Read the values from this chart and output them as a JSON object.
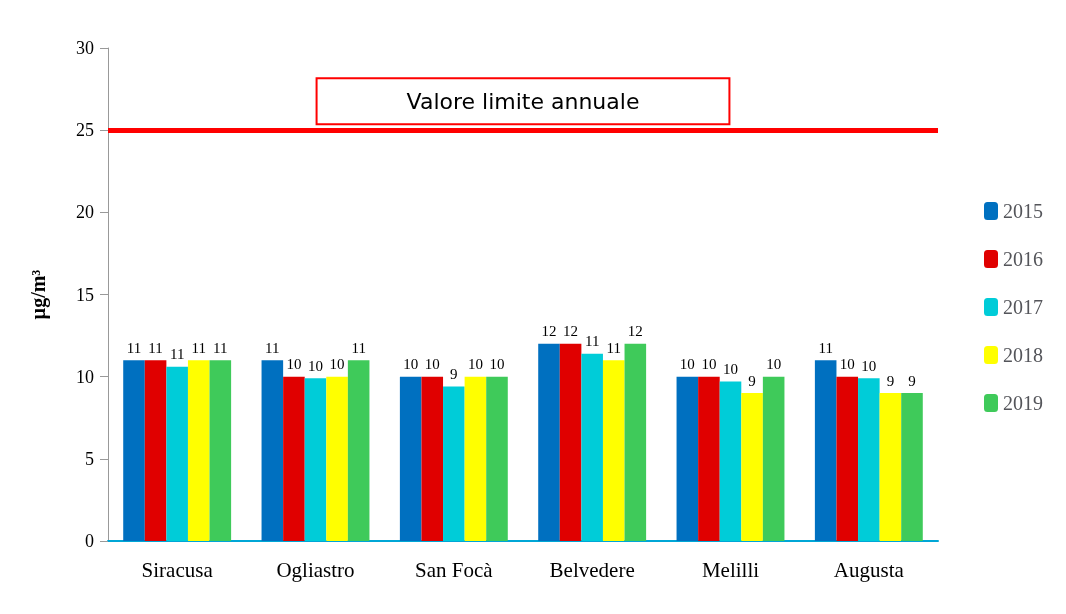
{
  "chart_data": {
    "type": "bar",
    "ylabel": "µg/m³",
    "categories": [
      "Siracusa",
      "Ogliastro",
      "San Focà",
      "Belvedere",
      "Melilli",
      "Augusta"
    ],
    "series": [
      {
        "name": "2015",
        "color": "#0070c0",
        "values": [
          11,
          11,
          10,
          12,
          10,
          11
        ],
        "value_labels": [
          "11",
          "11",
          "10",
          "12",
          "10",
          "11"
        ]
      },
      {
        "name": "2016",
        "color": "#e00000",
        "values": [
          11,
          10,
          10,
          12,
          10,
          10
        ],
        "value_labels": [
          "11",
          "10",
          "10",
          "12",
          "10",
          "10"
        ]
      },
      {
        "name": "2017",
        "color": "#00ccd8",
        "values": [
          10.6,
          9.9,
          9.4,
          11.4,
          9.7,
          9.9
        ],
        "value_labels": [
          "11",
          "10",
          "9",
          "11",
          "10",
          "10"
        ]
      },
      {
        "name": "2018",
        "color": "#ffff00",
        "values": [
          11,
          10,
          10,
          11,
          9,
          9
        ],
        "value_labels": [
          "11",
          "10",
          "10",
          "11",
          "9",
          "9"
        ]
      },
      {
        "name": "2019",
        "color": "#3fca5a",
        "values": [
          11,
          11,
          10,
          12,
          10,
          9
        ],
        "value_labels": [
          "11",
          "11",
          "10",
          "12",
          "10",
          "9"
        ]
      }
    ],
    "ylim": [
      0,
      30
    ],
    "yticks": [
      0,
      5,
      10,
      15,
      20,
      25,
      30
    ],
    "grid": false,
    "legend": "right",
    "ref_lines": [
      {
        "axis": "y",
        "value": 25,
        "label": "Valore limite annuale",
        "color": "#ff0000"
      }
    ]
  }
}
